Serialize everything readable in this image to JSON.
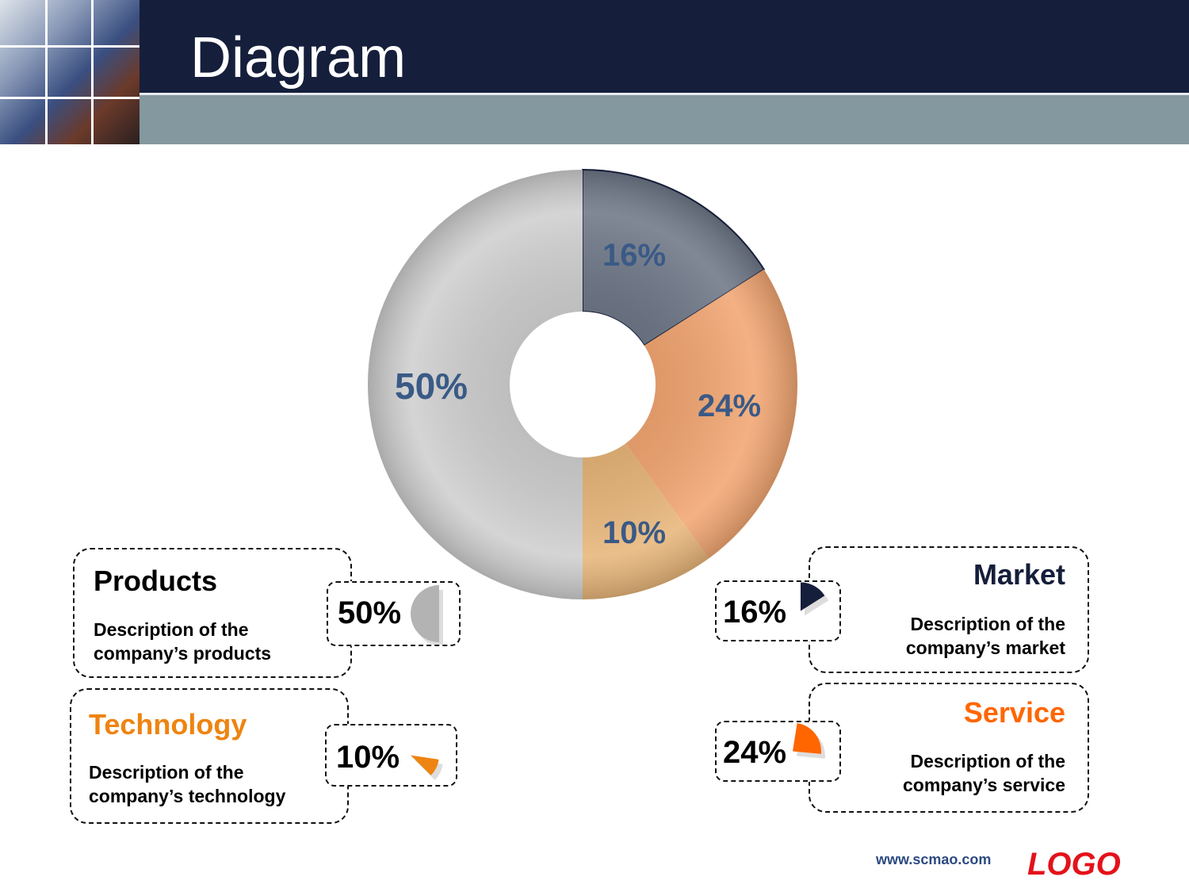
{
  "header": {
    "title": "Diagram"
  },
  "chart_data": {
    "type": "pie",
    "variant": "donut",
    "categories": [
      "Market",
      "Service",
      "Technology",
      "Products"
    ],
    "values": [
      16,
      24,
      10,
      50
    ],
    "data_labels": [
      "16%",
      "24%",
      "10%",
      "50%"
    ],
    "colors": [
      "#1a2240",
      "#f08a40",
      "#eab070",
      "#c8c8c8"
    ]
  },
  "legend_boxes": [
    {
      "title": "Products",
      "desc_line1": "Description of the",
      "desc_line2": "company’s products",
      "pct": "50%",
      "value": 50,
      "title_color": "#b0b0b0",
      "icon_color": "#b3b3b3"
    },
    {
      "title": "Technology",
      "desc_line1": "Description of the",
      "desc_line2": "company’s technology",
      "pct": "10%",
      "value": 10,
      "title_color": "#ee8411",
      "icon_color": "#ee8411"
    },
    {
      "title": "Market",
      "desc_line1": "Description of the",
      "desc_line2": "company’s market",
      "pct": "16%",
      "value": 16,
      "title_color": "#151e3b",
      "icon_color": "#151e3b"
    },
    {
      "title": "Service",
      "desc_line1": "Description of the",
      "desc_line2": "company’s service",
      "pct": "24%",
      "value": 24,
      "title_color": "#ff6600",
      "icon_color": "#ff6600"
    }
  ],
  "footer": {
    "url": "www.scmao.com",
    "logo": "LOGO"
  }
}
